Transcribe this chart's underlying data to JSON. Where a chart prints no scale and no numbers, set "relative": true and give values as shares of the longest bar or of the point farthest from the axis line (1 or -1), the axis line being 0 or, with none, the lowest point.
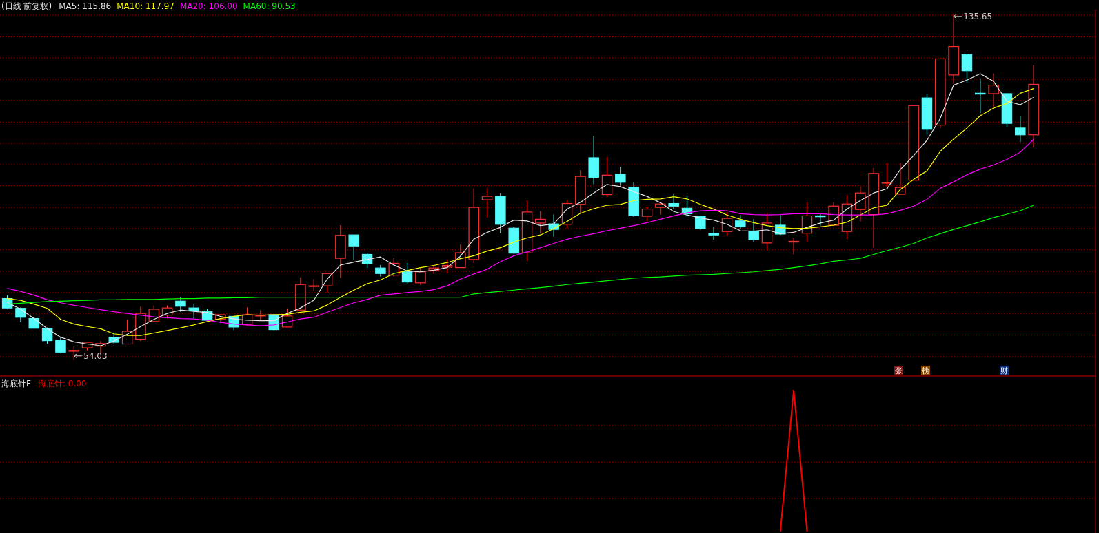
{
  "chart_data": [
    {
      "type": "candlestick",
      "title": "(日线 前复权)",
      "legend": "top left",
      "grid": "y",
      "tick_labels": false,
      "yticks": [
        {
          "value": 135.3,
          "label": null
        },
        {
          "value": 130.2,
          "label": null
        },
        {
          "value": 125.2,
          "label": null
        },
        {
          "value": 120.2,
          "label": null
        },
        {
          "value": 115.2,
          "label": null
        },
        {
          "value": 110.1,
          "label": null
        },
        {
          "value": 105.1,
          "label": null
        },
        {
          "value": 100.1,
          "label": null
        },
        {
          "value": 95.1,
          "label": null
        },
        {
          "value": 90.0,
          "label": null
        },
        {
          "value": 85.0,
          "label": null
        },
        {
          "value": 80.0,
          "label": null
        },
        {
          "value": 74.9,
          "label": null
        },
        {
          "value": 69.9,
          "label": null
        },
        {
          "value": 64.9,
          "label": null
        },
        {
          "value": 59.9,
          "label": null
        },
        {
          "value": 54.8,
          "label": null
        }
      ],
      "categories": [
        null,
        null,
        null,
        null,
        null,
        null,
        null,
        null,
        null,
        null,
        null,
        null,
        null,
        null,
        null,
        null,
        null,
        null,
        null,
        null,
        null,
        null,
        null,
        null,
        null,
        null,
        null,
        null,
        null,
        null,
        null,
        null,
        null,
        null,
        null,
        null,
        null,
        null,
        null,
        null,
        null,
        null,
        null,
        null,
        null,
        null,
        null,
        null,
        null,
        null,
        null,
        null,
        null,
        null,
        null,
        null,
        null,
        null,
        null,
        null,
        null,
        null,
        null,
        null,
        null,
        null,
        null,
        null,
        null,
        null,
        null,
        null,
        null,
        null,
        null,
        null,
        null,
        null
      ],
      "ohlc": [
        [
          68.5,
          69.3,
          66.0,
          66.3
        ],
        [
          66.2,
          66.4,
          62.9,
          64.1
        ],
        [
          63.8,
          64.1,
          61.5,
          61.5
        ],
        [
          61.5,
          61.7,
          57.9,
          58.6
        ],
        [
          58.6,
          59.5,
          55.6,
          55.9
        ],
        [
          56.1,
          57.2,
          54.03,
          56.3
        ],
        [
          56.9,
          58.3,
          56.3,
          58.2
        ],
        [
          57.3,
          58.5,
          55.6,
          57.9
        ],
        [
          59.4,
          60.4,
          57.9,
          58.2
        ],
        [
          57.8,
          63.6,
          57.8,
          60.8
        ],
        [
          58.8,
          66.6,
          58.5,
          65.0
        ],
        [
          63.1,
          66.9,
          63.1,
          66.0
        ],
        [
          64.6,
          66.9,
          63.8,
          66.3
        ],
        [
          67.9,
          68.8,
          65.4,
          66.7
        ],
        [
          66.3,
          67.3,
          63.8,
          65.6
        ],
        [
          65.4,
          66.0,
          63.3,
          63.4
        ],
        [
          63.6,
          64.8,
          62.7,
          64.7
        ],
        [
          64.3,
          64.4,
          61.1,
          61.8
        ],
        [
          62.4,
          66.4,
          62.1,
          64.7
        ],
        [
          64.4,
          65.8,
          63.4,
          64.6
        ],
        [
          64.7,
          64.8,
          61.1,
          61.2
        ],
        [
          61.8,
          66.2,
          61.8,
          64.4
        ],
        [
          65.8,
          73.5,
          65.8,
          71.8
        ],
        [
          71.4,
          73.1,
          70.4,
          71.5
        ],
        [
          71.5,
          74.6,
          69.9,
          74.4
        ],
        [
          78.0,
          85.8,
          73.4,
          83.4
        ],
        [
          83.5,
          83.5,
          77.6,
          80.9
        ],
        [
          78.9,
          79.3,
          75.7,
          76.8
        ],
        [
          75.7,
          76.4,
          73.7,
          74.4
        ],
        [
          74.0,
          78.0,
          73.7,
          76.8
        ],
        [
          74.8,
          76.9,
          72.0,
          72.4
        ],
        [
          72.2,
          75.7,
          71.7,
          74.8
        ],
        [
          75.2,
          76.4,
          74.3,
          75.7
        ],
        [
          75.9,
          77.7,
          74.4,
          76.3
        ],
        [
          75.8,
          81.2,
          75.8,
          79.3
        ],
        [
          77.7,
          94.5,
          76.9,
          90.0
        ],
        [
          91.8,
          94.5,
          87.6,
          92.6
        ],
        [
          92.6,
          93.4,
          83.9,
          86.0
        ],
        [
          85.1,
          85.3,
          79.1,
          79.2
        ],
        [
          79.3,
          91.6,
          77.3,
          88.9
        ],
        [
          86.3,
          89.1,
          83.8,
          87.2
        ],
        [
          86.1,
          88.3,
          83.1,
          84.8
        ],
        [
          86.0,
          91.8,
          85.1,
          90.9
        ],
        [
          90.7,
          98.8,
          88.5,
          97.3
        ],
        [
          101.7,
          106.9,
          95.4,
          97.1
        ],
        [
          93.0,
          101.9,
          92.4,
          97.6
        ],
        [
          97.8,
          99.6,
          95.1,
          95.9
        ],
        [
          94.8,
          95.9,
          87.8,
          88.0
        ],
        [
          87.9,
          90.2,
          86.7,
          89.6
        ],
        [
          90.0,
          91.3,
          88.3,
          90.8
        ],
        [
          90.9,
          93.1,
          89.7,
          90.3
        ],
        [
          89.8,
          92.6,
          87.8,
          88.5
        ],
        [
          87.9,
          88.0,
          84.7,
          85.0
        ],
        [
          83.9,
          85.4,
          82.4,
          83.5
        ],
        [
          84.3,
          88.9,
          83.4,
          87.4
        ],
        [
          86.8,
          88.2,
          85.0,
          85.4
        ],
        [
          84.4,
          87.2,
          81.8,
          82.4
        ],
        [
          81.6,
          88.6,
          79.8,
          86.3
        ],
        [
          85.8,
          88.2,
          83.5,
          83.7
        ],
        [
          81.8,
          82.7,
          78.9,
          82.0
        ],
        [
          83.9,
          91.2,
          81.8,
          88.0
        ],
        [
          88.0,
          88.7,
          85.7,
          87.8
        ],
        [
          85.8,
          91.2,
          85.7,
          90.3
        ],
        [
          84.3,
          93.0,
          82.5,
          90.8
        ],
        [
          89.5,
          94.9,
          86.7,
          93.4
        ],
        [
          88.3,
          99.3,
          80.5,
          98.0
        ],
        [
          95.7,
          100.5,
          94.9,
          95.9
        ],
        [
          93.1,
          100.5,
          93.0,
          94.7
        ],
        [
          96.4,
          114.0,
          96.3,
          114.0
        ],
        [
          115.8,
          116.8,
          107.1,
          108.4
        ],
        [
          109.4,
          125.0,
          108.7,
          125.0
        ],
        [
          121.2,
          135.65,
          119.1,
          127.9
        ],
        [
          126.0,
          126.2,
          119.4,
          122.2
        ],
        [
          116.9,
          120.4,
          112.2,
          116.7
        ],
        [
          116.8,
          121.6,
          113.5,
          118.8
        ],
        [
          116.8,
          116.8,
          109.0,
          109.8
        ],
        [
          108.7,
          111.6,
          105.4,
          107.1
        ],
        [
          107.1,
          123.5,
          104.1,
          119.0
        ]
      ],
      "series": [
        {
          "type": "line",
          "name": "MA5: 115.86",
          "color": "#e6e6e6",
          "values": [
            67.6,
            66.0,
            63.8,
            61.4,
            59.4,
            58.3,
            57.8,
            57.4,
            58.5,
            60.1,
            61.9,
            63.6,
            65.0,
            65.8,
            65.5,
            65.2,
            64.3,
            63.7,
            63.4,
            63.3,
            63.3,
            65.0,
            66.3,
            68.1,
            73.1,
            76.4,
            77.1,
            77.7,
            78.3,
            76.4,
            75.0,
            74.8,
            75.2,
            75.8,
            78.5,
            82.5,
            84.1,
            85.3,
            87.0,
            86.8,
            85.7,
            86.1,
            89.6,
            91.2,
            93.4,
            95.4,
            94.9,
            93.7,
            92.6,
            91.1,
            89.0,
            88.2,
            87.5,
            87.0,
            86.0,
            84.5,
            84.4,
            84.7,
            83.8,
            84.1,
            85.3,
            86.3,
            87.0,
            89.6,
            91.6,
            93.4,
            94.4,
            98.9,
            102.2,
            105.8,
            111.0,
            118.8,
            120.0,
            121.5,
            119.7,
            115.0,
            114.2,
            115.9
          ]
        },
        {
          "type": "line",
          "name": "MA10: 117.97",
          "color": "#ffff00",
          "values": [
            68.5,
            68.1,
            67.2,
            66.2,
            63.6,
            62.5,
            61.9,
            61.4,
            60.2,
            59.8,
            59.8,
            60.4,
            61.0,
            61.6,
            62.3,
            63.1,
            63.8,
            64.3,
            64.7,
            64.6,
            64.7,
            64.8,
            65.3,
            65.6,
            67.0,
            68.8,
            70.5,
            72.0,
            72.9,
            74.4,
            75.1,
            75.8,
            76.3,
            77.0,
            77.9,
            78.6,
            79.7,
            80.5,
            81.8,
            82.8,
            83.5,
            85.0,
            86.7,
            88.6,
            89.7,
            90.5,
            90.7,
            91.6,
            91.9,
            92.0,
            92.5,
            92.0,
            90.7,
            89.6,
            88.2,
            87.2,
            86.4,
            85.7,
            85.2,
            85.0,
            85.1,
            85.4,
            85.8,
            86.5,
            88.2,
            89.9,
            90.5,
            94.2,
            96.6,
            98.6,
            103.2,
            106.1,
            108.7,
            111.6,
            113.4,
            114.5,
            116.9,
            118.0
          ]
        },
        {
          "type": "line",
          "name": "MA20: 106.00",
          "color": "#ff00ff",
          "values": [
            70.9,
            70.2,
            69.3,
            68.2,
            67.5,
            66.9,
            66.4,
            65.9,
            65.4,
            65.0,
            64.6,
            64.2,
            64.0,
            63.8,
            63.7,
            63.4,
            62.9,
            62.5,
            62.3,
            62.1,
            62.3,
            63.0,
            63.7,
            64.1,
            65.3,
            66.4,
            67.5,
            68.3,
            69.3,
            69.6,
            69.9,
            70.2,
            70.6,
            71.5,
            73.1,
            74.3,
            75.4,
            77.2,
            78.6,
            79.5,
            80.5,
            81.5,
            82.5,
            83.2,
            83.8,
            84.5,
            85.1,
            85.7,
            86.4,
            87.2,
            88.0,
            88.7,
            89.2,
            89.3,
            89.2,
            88.5,
            88.3,
            88.2,
            88.3,
            88.5,
            88.5,
            88.5,
            88.3,
            88.2,
            88.2,
            88.2,
            88.5,
            89.3,
            90.3,
            91.9,
            94.5,
            96.0,
            97.7,
            99.0,
            100.0,
            101.3,
            103.0,
            106.0
          ]
        },
        {
          "type": "line",
          "name": "MA60: 90.53",
          "color": "#00ff00",
          "values": [
            67.2,
            67.4,
            67.6,
            67.8,
            67.9,
            68.0,
            68.1,
            68.2,
            68.2,
            68.3,
            68.3,
            68.3,
            68.4,
            68.5,
            68.5,
            68.6,
            68.6,
            68.7,
            68.7,
            68.8,
            68.8,
            68.8,
            68.8,
            68.8,
            68.8,
            68.8,
            68.8,
            68.8,
            68.8,
            68.8,
            68.8,
            68.8,
            68.8,
            68.8,
            68.8,
            69.6,
            69.9,
            70.2,
            70.5,
            70.8,
            71.1,
            71.4,
            71.8,
            72.1,
            72.4,
            72.7,
            73.0,
            73.3,
            73.5,
            73.6,
            73.8,
            74.0,
            74.1,
            74.2,
            74.4,
            74.6,
            74.8,
            75.1,
            75.4,
            75.8,
            76.2,
            76.7,
            77.3,
            77.6,
            78.0,
            78.9,
            79.8,
            80.6,
            81.5,
            82.8,
            83.8,
            84.8,
            85.7,
            86.6,
            87.6,
            88.4,
            89.2,
            90.5
          ]
        }
      ],
      "annotations": [
        "135.65",
        "54.03",
        "张",
        "榜",
        "财"
      ]
    },
    {
      "type": "line",
      "title": "海底针F",
      "legend": "top left",
      "tick_labels": false,
      "relative": true,
      "ref_lines": [
        {
          "axis": "y",
          "value": 0.75,
          "color": "#a00000",
          "line_style": "dotted"
        },
        {
          "axis": "y",
          "value": 0.49,
          "color": "#a00000",
          "line_style": "dotted"
        },
        {
          "axis": "y",
          "value": 0.23,
          "color": "#a00000",
          "line_style": "dotted"
        }
      ],
      "categories": [
        null,
        null,
        null,
        null,
        null,
        null,
        null,
        null,
        null,
        null,
        null,
        null,
        null,
        null,
        null,
        null,
        null,
        null,
        null,
        null,
        null,
        null,
        null,
        null,
        null,
        null,
        null,
        null,
        null,
        null,
        null,
        null,
        null,
        null,
        null,
        null,
        null,
        null,
        null,
        null,
        null,
        null,
        null,
        null,
        null,
        null,
        null,
        null,
        null,
        null,
        null,
        null,
        null,
        null,
        null,
        null,
        null,
        null,
        null,
        null,
        null,
        null,
        null,
        null,
        null,
        null,
        null,
        null,
        null,
        null,
        null,
        null,
        null,
        null,
        null,
        null,
        null,
        null
      ],
      "series": [
        {
          "name": "海底针: 0.00",
          "color": "#ff0000",
          "values": [
            null,
            null,
            null,
            null,
            null,
            null,
            null,
            null,
            null,
            null,
            null,
            null,
            null,
            null,
            null,
            null,
            null,
            null,
            null,
            null,
            null,
            null,
            null,
            null,
            null,
            null,
            null,
            null,
            null,
            null,
            null,
            null,
            null,
            null,
            null,
            null,
            null,
            null,
            null,
            null,
            null,
            null,
            null,
            null,
            null,
            null,
            null,
            null,
            null,
            null,
            null,
            null,
            null,
            null,
            null,
            null,
            null,
            null,
            0,
            1,
            0,
            null,
            null,
            null,
            null,
            null,
            null,
            null,
            null,
            null,
            null,
            null,
            null,
            null,
            null,
            null,
            null,
            null
          ]
        }
      ]
    }
  ]
}
